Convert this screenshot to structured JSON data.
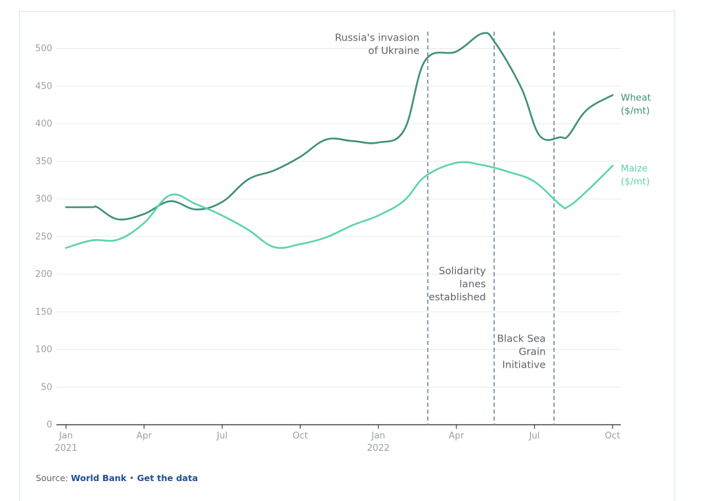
{
  "chart_data": {
    "type": "line",
    "x_labels": [
      {
        "text": "Jan",
        "sub": "2021",
        "month": 0
      },
      {
        "text": "Apr",
        "sub": "",
        "month": 3
      },
      {
        "text": "Jul",
        "sub": "",
        "month": 6
      },
      {
        "text": "Oct",
        "sub": "",
        "month": 9
      },
      {
        "text": "Jan",
        "sub": "2022",
        "month": 12
      },
      {
        "text": "Apr",
        "sub": "",
        "month": 15
      },
      {
        "text": "Jul",
        "sub": "",
        "month": 18
      },
      {
        "text": "Oct",
        "sub": "",
        "month": 21
      }
    ],
    "ylim": [
      0,
      520
    ],
    "yticks": [
      0,
      50,
      100,
      150,
      200,
      250,
      300,
      350,
      400,
      450,
      500
    ],
    "grid": true,
    "series": [
      {
        "name": "Wheat",
        "unit": "($/mt)",
        "color": "#3f8f79",
        "points": [
          [
            0,
            289
          ],
          [
            1,
            289
          ],
          [
            1.2,
            289
          ],
          [
            2,
            273
          ],
          [
            3,
            280
          ],
          [
            4,
            297
          ],
          [
            5,
            286
          ],
          [
            6,
            296
          ],
          [
            7,
            326
          ],
          [
            8,
            338
          ],
          [
            9,
            356
          ],
          [
            10,
            379
          ],
          [
            11,
            377
          ],
          [
            12,
            375
          ],
          [
            13,
            392
          ],
          [
            13.8,
            484
          ],
          [
            15,
            496
          ],
          [
            16,
            520
          ],
          [
            16.5,
            507
          ],
          [
            17.5,
            447
          ],
          [
            18.2,
            384
          ],
          [
            19,
            382
          ],
          [
            19.3,
            384
          ],
          [
            20,
            418
          ],
          [
            21,
            438
          ]
        ]
      },
      {
        "name": "Maize",
        "unit": "($/mt)",
        "color": "#5dd3aa",
        "points": [
          [
            0,
            235
          ],
          [
            1,
            245
          ],
          [
            2,
            246
          ],
          [
            3,
            268
          ],
          [
            4,
            305
          ],
          [
            5,
            293
          ],
          [
            6,
            278
          ],
          [
            7,
            259
          ],
          [
            8,
            236
          ],
          [
            9,
            240
          ],
          [
            10,
            249
          ],
          [
            11,
            265
          ],
          [
            12,
            278
          ],
          [
            13,
            298
          ],
          [
            13.8,
            330
          ],
          [
            15,
            348
          ],
          [
            16,
            345
          ],
          [
            17,
            336
          ],
          [
            18,
            323
          ],
          [
            19,
            292
          ],
          [
            19.3,
            290
          ],
          [
            20,
            310
          ],
          [
            21,
            344
          ]
        ]
      }
    ],
    "annotations": [
      {
        "month": 13.9,
        "lines": [
          "Russia's invasion",
          "of Ukraine"
        ],
        "label_y": 510
      },
      {
        "month": 16.45,
        "lines": [
          "Solidarity",
          "lanes",
          "established"
        ],
        "label_y": 200
      },
      {
        "month": 18.75,
        "lines": [
          "Black Sea",
          "Grain",
          "Initiative"
        ],
        "label_y": 110
      }
    ]
  },
  "source": {
    "prefix": "Source:",
    "link_text": "World Bank",
    "separator": "•",
    "data_link_text": "Get the data"
  }
}
